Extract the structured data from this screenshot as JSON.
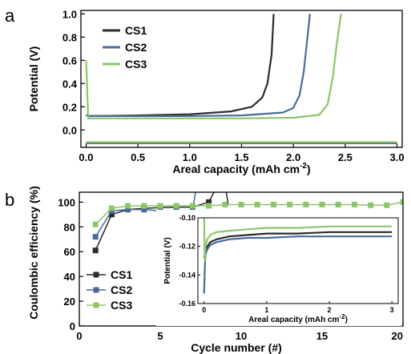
{
  "panels": {
    "a": "a",
    "b": "b"
  },
  "chart_data": [
    {
      "type": "line",
      "xlabel": "Areal capacity (mAh cm",
      "xlabel_exp": "-2",
      "xlabel_close": ")",
      "ylabel": "Potential (V)",
      "xlim": [
        -0.05,
        3.05
      ],
      "ylim": [
        -0.15,
        1.03
      ],
      "xticks": [
        "0.0",
        "0.5",
        "1.0",
        "1.5",
        "2.0",
        "2.5",
        "3.0"
      ],
      "yticks": [
        "0.0",
        "0.2",
        "0.4",
        "0.6",
        "0.8",
        "1.0"
      ],
      "legend_position": "top-left",
      "series": [
        {
          "name": "CS1",
          "color": "#2b2b2b",
          "plating": {
            "x": [
              0,
              3.0
            ],
            "y": [
              -0.11,
              -0.11
            ]
          },
          "stripping": {
            "x": [
              0,
              0.02,
              0.5,
              1.0,
              1.4,
              1.6,
              1.7,
              1.75,
              1.79,
              1.81
            ],
            "y": [
              0.13,
              0.12,
              0.125,
              0.135,
              0.16,
              0.2,
              0.28,
              0.4,
              0.65,
              1.0
            ]
          }
        },
        {
          "name": "CS2",
          "color": "#4a6a9a",
          "plating": {
            "x": [
              0,
              3.0
            ],
            "y": [
              -0.115,
              -0.115
            ]
          },
          "stripping": {
            "x": [
              0,
              0.02,
              0.5,
              1.0,
              1.5,
              1.9,
              2.0,
              2.06,
              2.1,
              2.13,
              2.16
            ],
            "y": [
              0.125,
              0.12,
              0.12,
              0.12,
              0.125,
              0.15,
              0.19,
              0.3,
              0.5,
              0.75,
              1.0
            ]
          }
        },
        {
          "name": "CS3",
          "color": "#8cc56a",
          "plating": {
            "x": [
              0,
              3.0
            ],
            "y": [
              -0.105,
              -0.105
            ]
          },
          "stripping": {
            "x": [
              0,
              0.02,
              0.5,
              1.0,
              1.5,
              2.0,
              2.25,
              2.33,
              2.38,
              2.42,
              2.46
            ],
            "y": [
              0.6,
              0.1,
              0.1,
              0.1,
              0.1,
              0.105,
              0.13,
              0.22,
              0.45,
              0.75,
              1.0
            ]
          }
        }
      ]
    },
    {
      "type": "line",
      "xlabel": "Cycle number (#)",
      "ylabel": "Coulombic efficiency (%)",
      "xlim": [
        0,
        20
      ],
      "ylim": [
        0,
        108
      ],
      "xticks": [
        "0",
        "5",
        "10",
        "15",
        "20"
      ],
      "yticks": [
        "0",
        "20",
        "40",
        "60",
        "80",
        "100"
      ],
      "legend_position": "bottom-left",
      "series": [
        {
          "name": "CS1",
          "color": "#2b2b2b",
          "marker": "square",
          "x": [
            1,
            2,
            3,
            4,
            5,
            6,
            7,
            8,
            8.6,
            9.0,
            9.2
          ],
          "y": [
            61,
            90,
            94,
            95,
            95.5,
            96,
            96,
            100,
            115,
            115,
            98
          ]
        },
        {
          "name": "CS2",
          "color": "#4a6a9a",
          "marker": "square",
          "x": [
            1,
            2,
            3,
            4,
            5,
            6,
            7,
            7.2
          ],
          "y": [
            72,
            93,
            94,
            94,
            93,
            93,
            93,
            110
          ]
        },
        {
          "name": "CS3",
          "color": "#8cc56a",
          "marker": "square",
          "x": [
            1,
            2,
            3,
            4,
            5,
            6,
            7,
            8,
            9,
            10,
            11,
            12,
            13,
            14,
            15,
            16,
            17,
            18,
            19,
            20
          ],
          "y": [
            82,
            95,
            97,
            97,
            97,
            97,
            97,
            97,
            98,
            98,
            98,
            98,
            98,
            98,
            98,
            98,
            98,
            97.5,
            97.5,
            100
          ]
        }
      ],
      "inset": {
        "xlabel": "Areal capacity (mAh cm",
        "xlabel_exp": "-2",
        "xlabel_close": ")",
        "ylabel": "Potential (V)",
        "xlim": [
          -0.1,
          3.1
        ],
        "ylim": [
          -0.16,
          -0.1
        ],
        "xticks": [
          "0",
          "1",
          "2",
          "3"
        ],
        "yticks": [
          "-0.10",
          "-0.12",
          "-0.14",
          "-0.16"
        ],
        "series": [
          {
            "name": "CS1",
            "color": "#2b2b2b",
            "x": [
              0,
              0.02,
              0.05,
              0.1,
              0.2,
              0.4,
              0.7,
              1.0,
              1.5,
              2.0,
              2.5,
              3.0
            ],
            "y": [
              -0.128,
              -0.124,
              -0.12,
              -0.117,
              -0.115,
              -0.113,
              -0.112,
              -0.111,
              -0.111,
              -0.11,
              -0.11,
              -0.11
            ]
          },
          {
            "name": "CS2",
            "color": "#4a6a9a",
            "x": [
              0,
              0.01,
              0.02,
              0.05,
              0.1,
              0.2,
              0.4,
              0.7,
              1.0,
              1.5,
              2.0,
              2.5,
              3.0
            ],
            "y": [
              -0.153,
              -0.135,
              -0.126,
              -0.122,
              -0.119,
              -0.117,
              -0.115,
              -0.114,
              -0.114,
              -0.113,
              -0.113,
              -0.113,
              -0.113
            ]
          },
          {
            "name": "CS3",
            "color": "#8cc56a",
            "x": [
              0,
              0.01,
              0.02,
              0.05,
              0.1,
              0.2,
              0.4,
              0.7,
              1.0,
              1.5,
              2.0,
              2.5,
              3.0
            ],
            "y": [
              -0.1,
              -0.13,
              -0.12,
              -0.115,
              -0.112,
              -0.11,
              -0.109,
              -0.108,
              -0.107,
              -0.107,
              -0.106,
              -0.106,
              -0.106
            ]
          }
        ]
      }
    }
  ]
}
